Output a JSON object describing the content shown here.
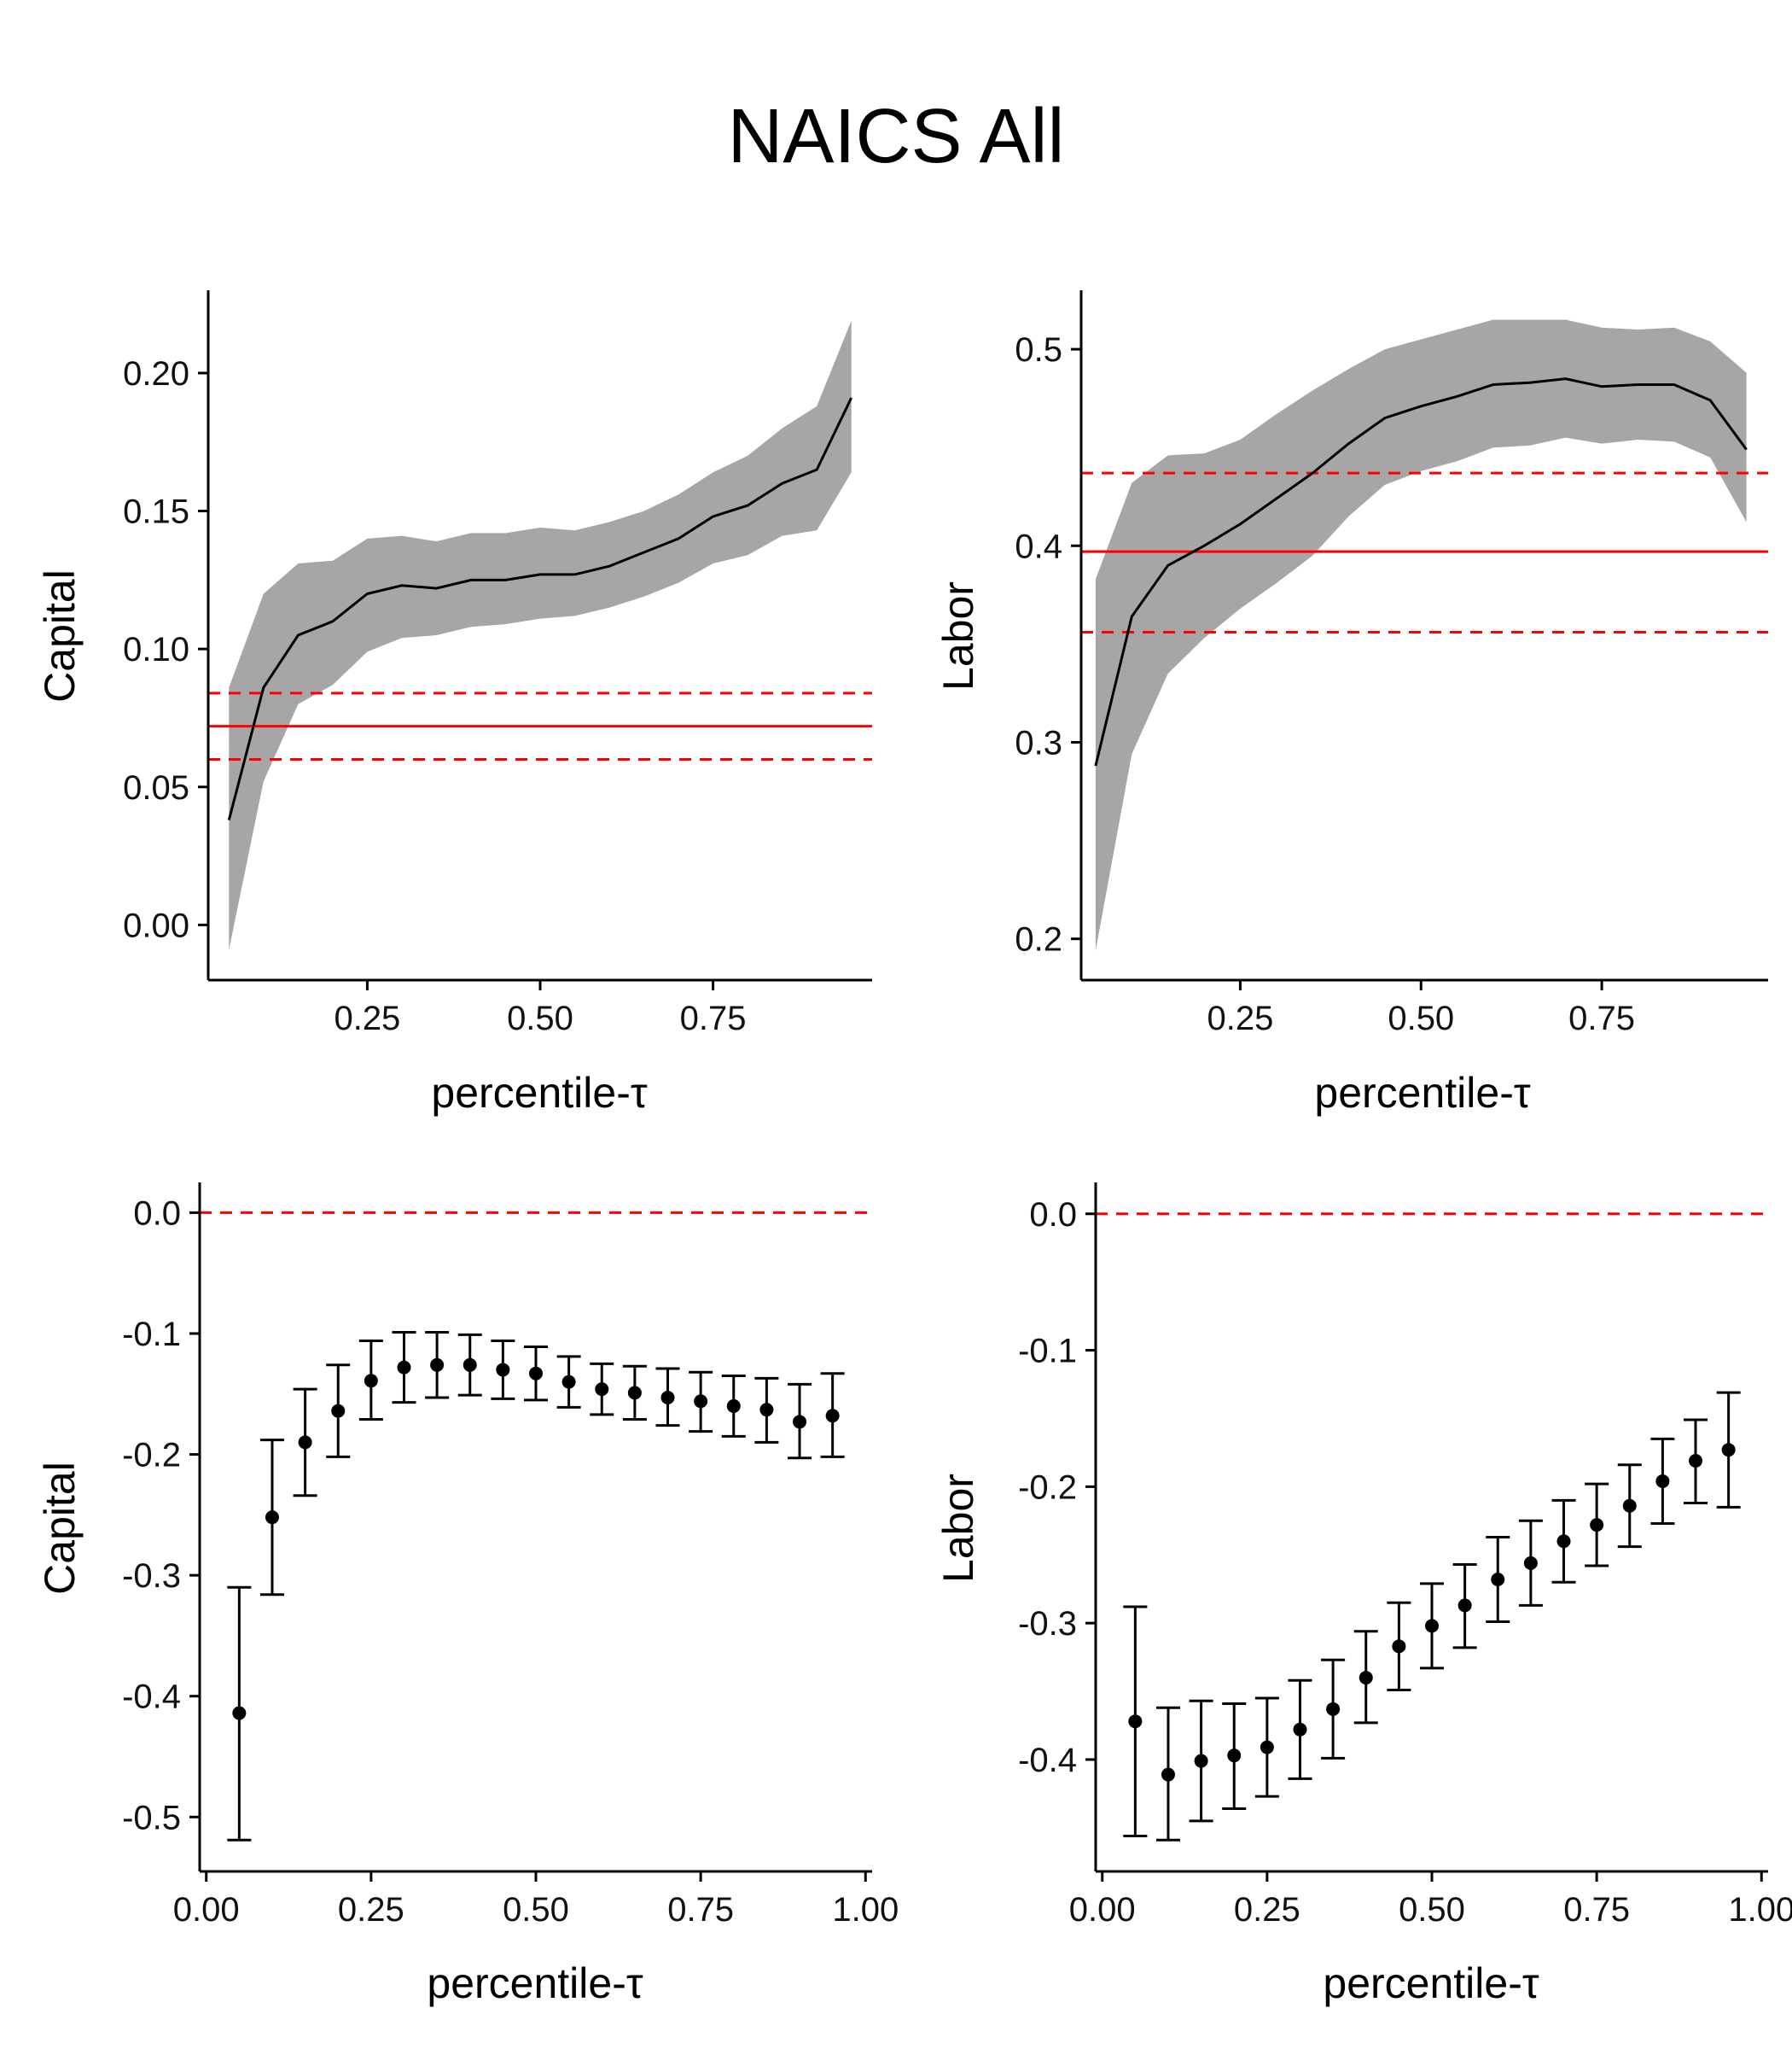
{
  "figure": {
    "title": "NAICS All"
  },
  "chart_data": [
    {
      "type": "line",
      "panel": "top-left",
      "xlabel": "percentile-τ",
      "ylabel": "Capital",
      "xlim": [
        0.02,
        0.98
      ],
      "ylim": [
        -0.02,
        0.23
      ],
      "xticks": [
        0.25,
        0.5,
        0.75
      ],
      "xtick_labels": [
        "0.25",
        "0.50",
        "0.75"
      ],
      "yticks": [
        0.0,
        0.05,
        0.1,
        0.15,
        0.2
      ],
      "ytick_labels": [
        "0.00",
        "0.05",
        "0.10",
        "0.15",
        "0.20"
      ],
      "x": [
        0.05,
        0.1,
        0.15,
        0.2,
        0.25,
        0.3,
        0.35,
        0.4,
        0.45,
        0.5,
        0.55,
        0.6,
        0.65,
        0.7,
        0.75,
        0.8,
        0.85,
        0.9,
        0.95
      ],
      "series": [
        {
          "y": [
            0.038,
            0.086,
            0.105,
            0.11,
            0.12,
            0.123,
            0.122,
            0.125,
            0.125,
            0.127,
            0.127,
            0.13,
            0.135,
            0.14,
            0.148,
            0.152,
            0.16,
            0.165,
            0.191
          ]
        }
      ],
      "band": {
        "upper": [
          0.086,
          0.12,
          0.131,
          0.132,
          0.14,
          0.141,
          0.139,
          0.142,
          0.142,
          0.144,
          0.143,
          0.146,
          0.15,
          0.156,
          0.164,
          0.17,
          0.18,
          0.188,
          0.219
        ],
        "lower": [
          -0.009,
          0.052,
          0.08,
          0.087,
          0.099,
          0.104,
          0.105,
          0.108,
          0.109,
          0.111,
          0.112,
          0.115,
          0.119,
          0.124,
          0.131,
          0.134,
          0.141,
          0.143,
          0.164
        ]
      },
      "reference_lines": [
        {
          "y": 0.072,
          "style": "solid"
        },
        {
          "y": 0.084,
          "style": "dashed"
        },
        {
          "y": 0.06,
          "style": "dashed"
        }
      ],
      "colors": {
        "line": "#000000",
        "band": "#a6a6a6",
        "reference": "#ff0000"
      }
    },
    {
      "type": "line",
      "panel": "top-right",
      "xlabel": "percentile-τ",
      "ylabel": "Labor",
      "xlim": [
        0.03,
        0.98
      ],
      "ylim": [
        0.179,
        0.53
      ],
      "xticks": [
        0.25,
        0.5,
        0.75
      ],
      "xtick_labels": [
        "0.25",
        "0.50",
        "0.75"
      ],
      "yticks": [
        0.2,
        0.3,
        0.4,
        0.5
      ],
      "ytick_labels": [
        "0.2",
        "0.3",
        "0.4",
        "0.5"
      ],
      "x": [
        0.05,
        0.1,
        0.15,
        0.2,
        0.25,
        0.3,
        0.35,
        0.4,
        0.45,
        0.5,
        0.55,
        0.6,
        0.65,
        0.7,
        0.75,
        0.8,
        0.85,
        0.9,
        0.95
      ],
      "series": [
        {
          "y": [
            0.288,
            0.364,
            0.39,
            0.4,
            0.411,
            0.424,
            0.437,
            0.452,
            0.465,
            0.471,
            0.476,
            0.482,
            0.483,
            0.485,
            0.481,
            0.482,
            0.482,
            0.474,
            0.449
          ]
        }
      ],
      "band": {
        "upper": [
          0.383,
          0.432,
          0.446,
          0.447,
          0.454,
          0.467,
          0.479,
          0.49,
          0.5,
          0.505,
          0.51,
          0.515,
          0.515,
          0.515,
          0.511,
          0.51,
          0.511,
          0.504,
          0.488
        ],
        "lower": [
          0.194,
          0.294,
          0.335,
          0.353,
          0.368,
          0.381,
          0.395,
          0.415,
          0.431,
          0.438,
          0.443,
          0.45,
          0.451,
          0.455,
          0.452,
          0.454,
          0.453,
          0.445,
          0.412
        ]
      },
      "reference_lines": [
        {
          "y": 0.397,
          "style": "solid"
        },
        {
          "y": 0.437,
          "style": "dashed"
        },
        {
          "y": 0.356,
          "style": "dashed"
        }
      ],
      "colors": {
        "line": "#000000",
        "band": "#a6a6a6",
        "reference": "#ff0000"
      }
    },
    {
      "type": "scatter",
      "panel": "bottom-left",
      "xlabel": "percentile-τ",
      "ylabel": "Capital",
      "xlim": [
        -0.01,
        1.01
      ],
      "ylim": [
        -0.545,
        0.025
      ],
      "xticks": [
        0.0,
        0.25,
        0.5,
        0.75,
        1.0
      ],
      "xtick_labels": [
        "0.00",
        "0.25",
        "0.50",
        "0.75",
        "1.00"
      ],
      "yticks": [
        0.0,
        -0.1,
        -0.2,
        -0.3,
        -0.4,
        -0.5
      ],
      "ytick_labels": [
        "0.0",
        "-0.1",
        "-0.2",
        "-0.3",
        "-0.4",
        "-0.5"
      ],
      "x": [
        0.05,
        0.1,
        0.15,
        0.2,
        0.25,
        0.3,
        0.35,
        0.4,
        0.45,
        0.5,
        0.55,
        0.6,
        0.65,
        0.7,
        0.75,
        0.8,
        0.85,
        0.9,
        0.95
      ],
      "series": [
        {
          "y": [
            -0.414,
            -0.252,
            -0.19,
            -0.164,
            -0.139,
            -0.128,
            -0.126,
            -0.126,
            -0.13,
            -0.133,
            -0.14,
            -0.146,
            -0.149,
            -0.153,
            -0.156,
            -0.16,
            -0.163,
            -0.173,
            -0.168
          ],
          "upper": [
            -0.31,
            -0.188,
            -0.146,
            -0.126,
            -0.106,
            -0.099,
            -0.099,
            -0.101,
            -0.106,
            -0.111,
            -0.119,
            -0.125,
            -0.127,
            -0.129,
            -0.132,
            -0.135,
            -0.137,
            -0.142,
            -0.133
          ],
          "lower": [
            -0.519,
            -0.316,
            -0.234,
            -0.202,
            -0.171,
            -0.157,
            -0.153,
            -0.151,
            -0.154,
            -0.155,
            -0.161,
            -0.167,
            -0.171,
            -0.176,
            -0.181,
            -0.185,
            -0.19,
            -0.203,
            -0.202
          ]
        }
      ],
      "reference_lines": [
        {
          "y": 0.0,
          "style": "dashed"
        }
      ],
      "colors": {
        "points": "#000000",
        "reference": "#ff0000"
      }
    },
    {
      "type": "scatter",
      "panel": "bottom-right",
      "xlabel": "percentile-τ",
      "ylabel": "Labor",
      "xlim": [
        -0.01,
        1.01
      ],
      "ylim": [
        -0.482,
        0.023
      ],
      "xticks": [
        0.0,
        0.25,
        0.5,
        0.75,
        1.0
      ],
      "xtick_labels": [
        "0.00",
        "0.25",
        "0.50",
        "0.75",
        "1.00"
      ],
      "yticks": [
        0.0,
        -0.1,
        -0.2,
        -0.3,
        -0.4
      ],
      "ytick_labels": [
        "0.0",
        "-0.1",
        "-0.2",
        "-0.3",
        "-0.4"
      ],
      "x": [
        0.05,
        0.1,
        0.15,
        0.2,
        0.25,
        0.3,
        0.35,
        0.4,
        0.45,
        0.5,
        0.55,
        0.6,
        0.65,
        0.7,
        0.75,
        0.8,
        0.85,
        0.9,
        0.95
      ],
      "series": [
        {
          "y": [
            -0.372,
            -0.411,
            -0.401,
            -0.397,
            -0.391,
            -0.378,
            -0.363,
            -0.34,
            -0.317,
            -0.302,
            -0.287,
            -0.268,
            -0.256,
            -0.24,
            -0.228,
            -0.214,
            -0.196,
            -0.181,
            -0.173
          ],
          "upper": [
            -0.288,
            -0.362,
            -0.357,
            -0.359,
            -0.355,
            -0.342,
            -0.327,
            -0.306,
            -0.285,
            -0.271,
            -0.257,
            -0.237,
            -0.225,
            -0.21,
            -0.198,
            -0.184,
            -0.165,
            -0.151,
            -0.131
          ],
          "lower": [
            -0.456,
            -0.459,
            -0.445,
            -0.436,
            -0.427,
            -0.414,
            -0.399,
            -0.373,
            -0.349,
            -0.333,
            -0.318,
            -0.299,
            -0.287,
            -0.27,
            -0.258,
            -0.244,
            -0.227,
            -0.212,
            -0.215
          ]
        }
      ],
      "reference_lines": [
        {
          "y": 0.0,
          "style": "dashed"
        }
      ],
      "colors": {
        "points": "#000000",
        "reference": "#ff0000"
      }
    }
  ]
}
